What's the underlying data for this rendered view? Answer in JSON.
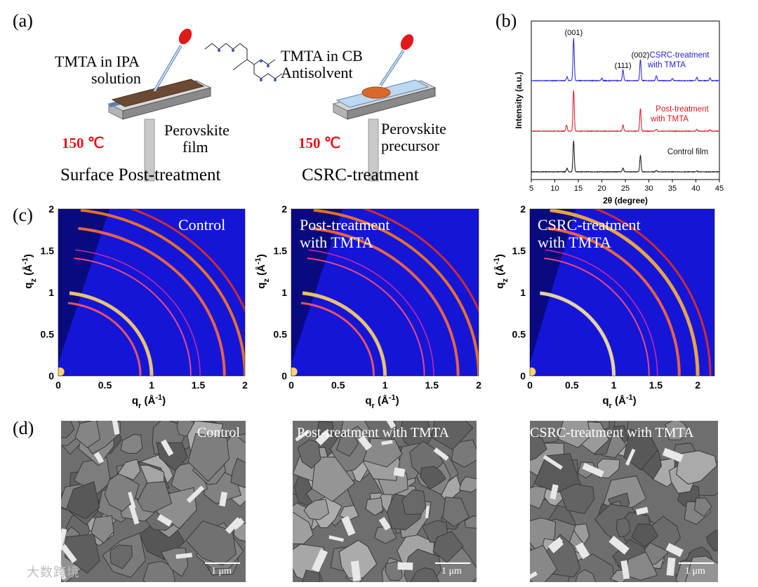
{
  "panels": {
    "a": {
      "label": "(a)",
      "left": {
        "solution_label_line1": "TMTA in IPA",
        "solution_label_line2": "solution",
        "temperature": "150 ℃",
        "film_label_line1": "Perovskite",
        "film_label_line2": "film",
        "caption": "Surface Post-treatment"
      },
      "right": {
        "solution_label_line1": "TMTA in CB",
        "solution_label_line2": "Antisolvent",
        "temperature": "150 ℃",
        "film_label_line1": "Perovskite",
        "film_label_line2": "precursor",
        "caption": "CSRC-treatment"
      }
    },
    "b": {
      "label": "(b)"
    },
    "c": {
      "label": "(c)",
      "maps": [
        {
          "label_line1": "Control",
          "label_line2": "",
          "x_max": 2,
          "x_ticks": [
            "0",
            "0.5",
            "1",
            "1.5",
            "2"
          ]
        },
        {
          "label_line1": "Post-treatment",
          "label_line2": "with TMTA",
          "x_max": 2,
          "x_ticks": [
            "0",
            "0.5",
            "1",
            "1.5",
            "2"
          ]
        },
        {
          "label_line1": "CSRC-treatment",
          "label_line2": "with TMTA",
          "x_max": 2.2,
          "x_ticks": [
            "0",
            "0.5",
            "1",
            "1.5",
            "2"
          ]
        }
      ],
      "y_ticks": [
        "0",
        "0.5",
        "1",
        "1.5",
        "2"
      ],
      "ylabel": "q_z (Å^-1)",
      "xlabel": "q_r (Å^-1)"
    },
    "d": {
      "label": "(d)",
      "images": [
        {
          "label": "Control",
          "scale": "1 μm"
        },
        {
          "label": "Post-treatment with TMTA",
          "scale": "1 μm"
        },
        {
          "label": "CSRC-treatment with TMTA",
          "scale": "1 μm"
        }
      ]
    }
  },
  "watermark": "大数跨境",
  "chart_data": {
    "type": "line",
    "xlabel": "2θ (degree)",
    "ylabel": "Intensity (a.u.)",
    "xlim": [
      5,
      45
    ],
    "x_ticks": [
      5,
      10,
      15,
      20,
      25,
      30,
      35,
      40,
      45
    ],
    "peak_labels": [
      {
        "text": "(001)",
        "x": 14.0
      },
      {
        "text": "(111)",
        "x": 24.5
      },
      {
        "text": "(002)",
        "x": 28.2
      }
    ],
    "series": [
      {
        "name": "CSRC-treatment with TMTA",
        "color": "#1f1fd6",
        "peaks": [
          [
            12.6,
            0.1
          ],
          [
            14.0,
            1.0
          ],
          [
            20.0,
            0.06
          ],
          [
            24.5,
            0.25
          ],
          [
            28.2,
            0.5
          ],
          [
            31.6,
            0.12
          ],
          [
            35.0,
            0.05
          ],
          [
            40.2,
            0.08
          ],
          [
            43.0,
            0.07
          ]
        ]
      },
      {
        "name": "Post-treatment with TMTA",
        "color": "#e0141b",
        "peaks": [
          [
            12.5,
            0.15
          ],
          [
            14.0,
            1.0
          ],
          [
            24.5,
            0.15
          ],
          [
            28.2,
            0.55
          ],
          [
            31.6,
            0.05
          ],
          [
            40.2,
            0.04
          ],
          [
            43.0,
            0.03
          ]
        ]
      },
      {
        "name": "Control film",
        "color": "#111111",
        "peaks": [
          [
            12.6,
            0.1
          ],
          [
            14.0,
            0.85
          ],
          [
            24.5,
            0.1
          ],
          [
            28.2,
            0.45
          ],
          [
            31.6,
            0.04
          ],
          [
            40.2,
            0.03
          ]
        ]
      }
    ]
  }
}
